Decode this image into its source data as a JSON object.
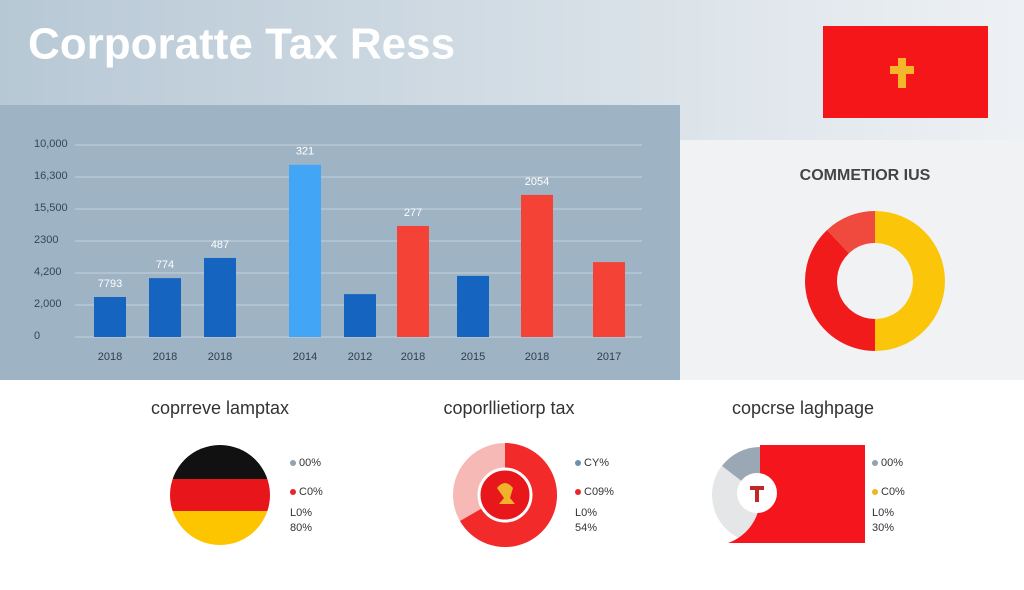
{
  "header": {
    "title": "Corporatte Tax Ress"
  },
  "chart_data": [
    {
      "type": "bar",
      "categories": [
        "2018",
        "2018",
        "2018",
        "2014",
        "2012",
        "2018",
        "2015",
        "2018",
        "2017"
      ],
      "values": [
        1.25,
        1.84,
        2.47,
        5.38,
        1.34,
        3.47,
        1.91,
        4.44,
        2.34
      ],
      "value_labels": [
        "7793",
        "774",
        "487",
        "321",
        null,
        "277",
        null,
        "2054",
        null
      ],
      "colors": [
        "#1565c0",
        "#1565c0",
        "#1565c0",
        "#42a5f5",
        "#1565c0",
        "#f44336",
        "#1565c0",
        "#f44336",
        "#f44336"
      ],
      "ylim": [
        0,
        6
      ],
      "yticks": [
        0,
        {
          "value": 1,
          "label": "2,000"
        },
        {
          "value": 2,
          "label": "4,200"
        },
        {
          "value": 3,
          "label": "2300"
        },
        {
          "value": 4,
          "label": "15,500"
        },
        {
          "value": 5,
          "label": "16,300"
        },
        {
          "value": 6,
          "label": "10,000"
        }
      ],
      "grid": true
    },
    {
      "type": "donut",
      "title": "COMMETIOR IUS",
      "values": [
        50,
        38,
        12
      ],
      "colors": [
        "#fbc50a",
        "#f21b1b",
        "#f04a3e"
      ]
    }
  ],
  "panels": [
    {
      "title": "coprreve lamptax",
      "legend": [
        "00%",
        "C0%",
        "L0%",
        "80%"
      ]
    },
    {
      "title": "coporllietiorp tax",
      "legend": [
        "CY%",
        "C09%",
        "L0%",
        "54%"
      ]
    },
    {
      "title": "copcrse laghpage",
      "legend": [
        "00%",
        "C0%",
        "L0%",
        "30%"
      ]
    }
  ]
}
